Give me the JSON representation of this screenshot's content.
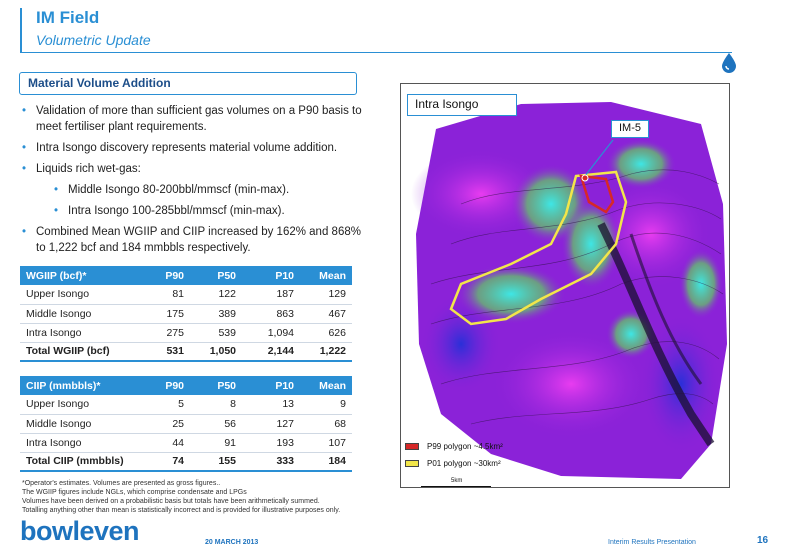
{
  "header": {
    "title": "IM Field",
    "subtitle": "Volumetric Update"
  },
  "section": {
    "label": "Material Volume Addition"
  },
  "bullets": [
    {
      "text": "Validation of more than sufficient gas volumes on a P90 basis to meet fertiliser plant requirements.",
      "level": 1
    },
    {
      "text": "Intra Isongo discovery represents material volume addition.",
      "level": 1
    },
    {
      "text": "Liquids rich wet-gas:",
      "level": 1
    },
    {
      "text": "Middle Isongo 80-200bbl/mmscf (min-max).",
      "level": 2
    },
    {
      "text": "Intra Isongo 100-285bbl/mmscf (min-max).",
      "level": 2
    },
    {
      "text": "Combined Mean WGIIP and CIIP increased by 162% and 868% to 1,222 bcf and 184 mmbbls respectively.",
      "level": 1
    }
  ],
  "wgiip_table": {
    "headers": [
      "WGIIP (bcf)*",
      "P90",
      "P50",
      "P10",
      "Mean"
    ],
    "rows": [
      [
        "Upper Isongo",
        "81",
        "122",
        "187",
        "129"
      ],
      [
        "Middle Isongo",
        "175",
        "389",
        "863",
        "467"
      ],
      [
        "Intra Isongo",
        "275",
        "539",
        "1,094",
        "626"
      ]
    ],
    "total": [
      "Total WGIIP (bcf)",
      "531",
      "1,050",
      "2,144",
      "1,222"
    ]
  },
  "ciip_table": {
    "headers": [
      "CIIP (mmbbls)*",
      "P90",
      "P50",
      "P10",
      "Mean"
    ],
    "rows": [
      [
        "Upper Isongo",
        "5",
        "8",
        "13",
        "9"
      ],
      [
        "Middle Isongo",
        "25",
        "56",
        "127",
        "68"
      ],
      [
        "Intra Isongo",
        "44",
        "91",
        "193",
        "107"
      ]
    ],
    "total": [
      "Total CIIP (mmbbls)",
      "74",
      "155",
      "333",
      "184"
    ]
  },
  "footnotes": [
    "*Operator's estimates. Volumes are presented as gross figures..",
    "The WGIIP figures include NGLs, which comprise condensate and LPGs",
    "Volumes have been derived on a probabilistic basis but totals have been arithmetically summed.",
    "Totalling anything other than mean is statistically incorrect and is provided for illustrative purposes only."
  ],
  "map": {
    "label": "Intra Isongo",
    "well_label": "IM-5",
    "legend": [
      {
        "label": "P99 polygon ~4.5km²",
        "color": "#d62828"
      },
      {
        "label": "P01 polygon ~30km²",
        "color": "#f2e64a"
      }
    ],
    "scale_label": "5km",
    "colors": {
      "background": "#8b22d8",
      "magenta": "#e83cf0",
      "cyan": "#3ee6e6",
      "green": "#5fd35f",
      "blue": "#2a2fd8"
    }
  },
  "footer": {
    "logo_main": "bowleven",
    "date": "20 MARCH 2013",
    "presentation": "Interim Results Presentation",
    "page": "16"
  },
  "theme": {
    "accent": "#2a8fd4",
    "dark_accent": "#1d4e89"
  }
}
